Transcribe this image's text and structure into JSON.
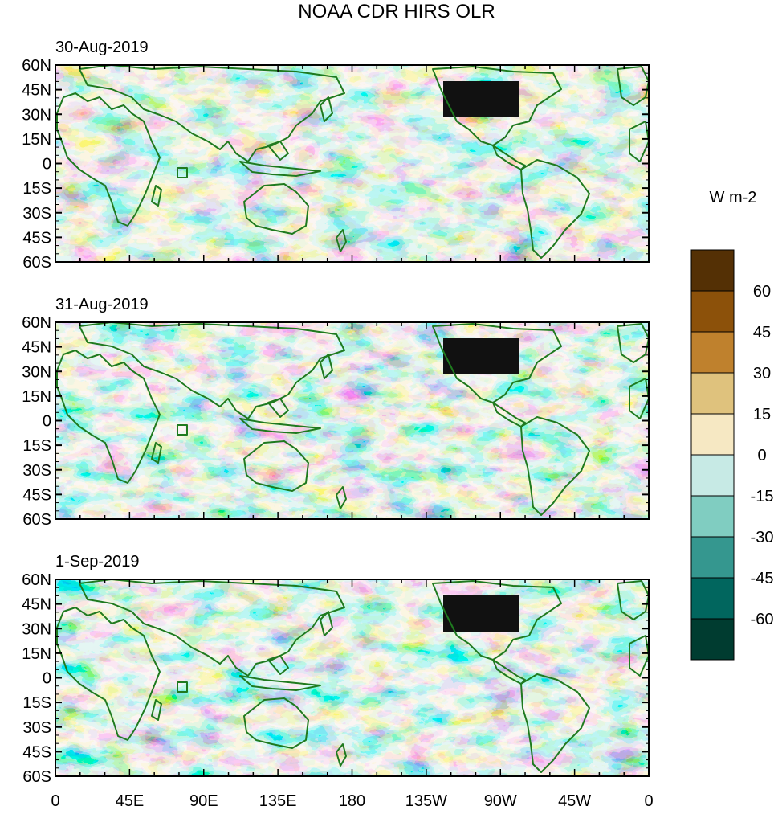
{
  "title": "NOAA CDR HIRS OLR",
  "units": "W m-2",
  "lat_labels": [
    "60N",
    "45N",
    "30N",
    "15N",
    "0",
    "15S",
    "30S",
    "45S",
    "60S"
  ],
  "lon_labels": [
    "0",
    "45E",
    "90E",
    "135E",
    "180",
    "135W",
    "90W",
    "45W",
    "0"
  ],
  "panels": [
    {
      "date": "30-Aug-2019"
    },
    {
      "date": "31-Aug-2019"
    },
    {
      "date": "1-Sep-2019"
    }
  ],
  "colorbar": {
    "labels": [
      "60",
      "45",
      "30",
      "15",
      "0",
      "-15",
      "-30",
      "-45",
      "-60"
    ],
    "colors_top_to_bottom": [
      "#543005",
      "#8c510a",
      "#bf812d",
      "#dfc27d",
      "#f6e8c3",
      "#c7eae5",
      "#80cdc1",
      "#35978f",
      "#01665e",
      "#003c30"
    ]
  },
  "palette": {
    "land_outline": "#1f7a1f",
    "us_mask": "#111111",
    "dateline": "#1f7a1f"
  }
}
